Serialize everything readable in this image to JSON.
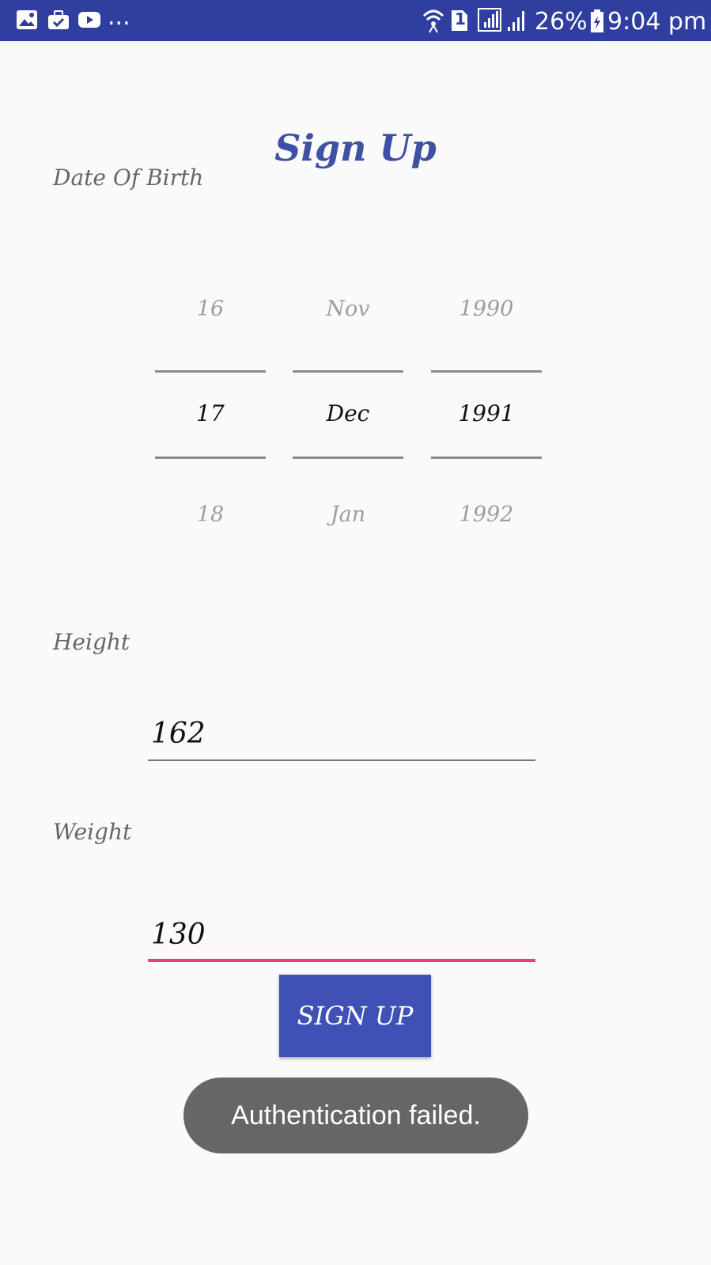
{
  "status_bar": {
    "left_icons": [
      "gallery-icon",
      "briefcase-icon",
      "youtube-icon"
    ],
    "more": "...",
    "sim": "1",
    "battery": "26%",
    "time": "9:04 pm"
  },
  "title": "Sign Up",
  "dob": {
    "label": "Date Of Birth",
    "day": {
      "prev": "16",
      "selected": "17",
      "next": "18"
    },
    "month": {
      "prev": "Nov",
      "selected": "Dec",
      "next": "Jan"
    },
    "year": {
      "prev": "1990",
      "selected": "1991",
      "next": "1992"
    }
  },
  "height": {
    "label": "Height",
    "value": "162"
  },
  "weight": {
    "label": "Weight",
    "value": "130"
  },
  "button": {
    "label": "SIGN UP"
  },
  "toast": "Authentication failed.",
  "colors": {
    "status_bar": "#303f9f",
    "primary": "#3f51b5",
    "accent": "#ec407a",
    "toast": "#666666"
  }
}
